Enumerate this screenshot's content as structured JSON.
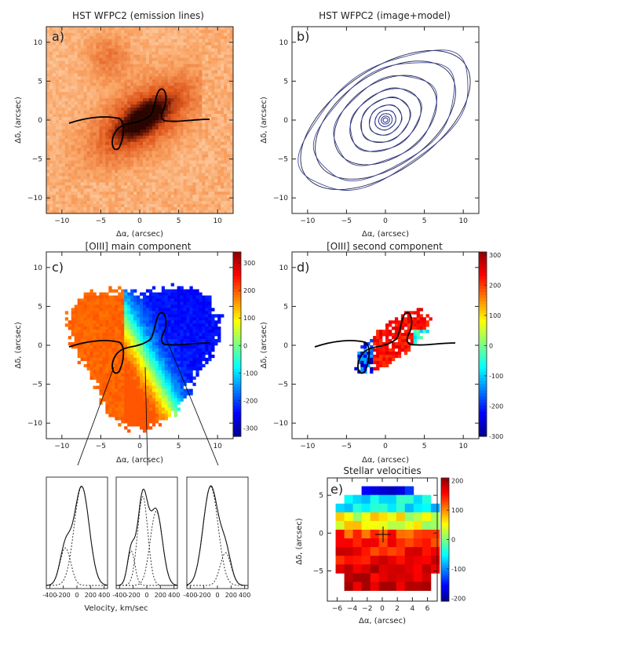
{
  "chart_data": [
    {
      "id": "a",
      "type": "heatmap",
      "title": "HST WFPC2 (emission lines)",
      "panel_label": "a)",
      "xlabel": "Δα, (arcsec)",
      "ylabel": "Δδ, (arcsec)",
      "xlim": [
        -12,
        12
      ],
      "ylim": [
        -12,
        12
      ],
      "xticks": [
        -10,
        -5,
        0,
        5,
        10
      ],
      "yticks": [
        -10,
        -5,
        0,
        5,
        10
      ],
      "colormap": [
        "#ffe8cf",
        "#f9a160",
        "#e0571c",
        "#6e1606",
        "#2a0500"
      ]
    },
    {
      "id": "b",
      "type": "contour",
      "title": "HST WFPC2 (image+model)",
      "panel_label": "b)",
      "xlabel": "Δα, (arcsec)",
      "ylabel": "Δδ, (arcsec)",
      "xlim": [
        -12,
        12
      ],
      "ylim": [
        -12,
        12
      ],
      "xticks": [
        -10,
        -5,
        0,
        5,
        10
      ],
      "yticks": [
        -10,
        -5,
        0,
        5,
        10
      ],
      "position_angle_deg": 35,
      "contours": [
        {
          "a": 12.5,
          "b": 6.5
        },
        {
          "a": 10.2,
          "b": 5.9
        },
        {
          "a": 7.3,
          "b": 4.8
        },
        {
          "a": 5.0,
          "b": 3.5
        },
        {
          "a": 3.4,
          "b": 2.6
        },
        {
          "a": 2.2,
          "b": 1.8
        },
        {
          "a": 1.4,
          "b": 1.2
        },
        {
          "a": 0.9,
          "b": 0.8
        },
        {
          "a": 0.55,
          "b": 0.5
        },
        {
          "a": 0.3,
          "b": 0.28
        }
      ]
    },
    {
      "id": "c",
      "type": "heatmap",
      "title": "[OIII] main component",
      "panel_label": "c)",
      "xlabel": "Δα, (arcsec)",
      "ylabel": "Δδ, (arcsec)",
      "xlim": [
        -12,
        12
      ],
      "ylim": [
        -12,
        12
      ],
      "xticks": [
        -10,
        -5,
        0,
        5,
        10
      ],
      "yticks": [
        -10,
        -5,
        0,
        5,
        10
      ],
      "colorbar": {
        "min": -330,
        "max": 340,
        "ticks": [
          300,
          200,
          100,
          0,
          -100,
          -200,
          -300
        ]
      }
    },
    {
      "id": "d",
      "type": "heatmap",
      "title": "[OIII] second component",
      "panel_label": "d)",
      "xlabel": "Δα, (arcsec)",
      "ylabel": "Δδ, (arcsec)",
      "xlim": [
        -12,
        12
      ],
      "ylim": [
        -12,
        12
      ],
      "xticks": [
        -10,
        -5,
        0,
        5,
        10
      ],
      "yticks": [
        -10,
        -5,
        0,
        5,
        10
      ],
      "colorbar": {
        "min": -300,
        "max": 310,
        "ticks": [
          300,
          200,
          100,
          0,
          -100,
          -200,
          -300
        ]
      }
    },
    {
      "id": "spectra",
      "type": "line",
      "xlabel": "Velocity, km/sec",
      "xlim": [
        -450,
        450
      ],
      "xticks": [
        -400,
        -200,
        0,
        200,
        400
      ],
      "xtick_labels": [
        "-400",
        "-200",
        "0",
        "200",
        "400"
      ],
      "panels": [
        {
          "components": [
            {
              "mu": 70,
              "sigma": 110,
              "amp": 1.0
            },
            {
              "mu": -170,
              "sigma": 80,
              "amp": 0.38
            }
          ]
        },
        {
          "components": [
            {
              "mu": -60,
              "sigma": 75,
              "amp": 0.9
            },
            {
              "mu": 140,
              "sigma": 90,
              "amp": 0.75
            },
            {
              "mu": -230,
              "sigma": 55,
              "amp": 0.35
            }
          ]
        },
        {
          "components": [
            {
              "mu": -100,
              "sigma": 110,
              "amp": 1.0
            },
            {
              "mu": 120,
              "sigma": 80,
              "amp": 0.33
            }
          ]
        }
      ]
    },
    {
      "id": "e",
      "type": "heatmap",
      "title": "Stellar velocities",
      "panel_label": "e)",
      "xlabel": "Δα, (arcsec)",
      "ylabel": "Δδ, (arcsec)",
      "xlim": [
        -7.3,
        7.3
      ],
      "ylim": [
        -9,
        7.3
      ],
      "xticks": [
        -6,
        -4,
        -2,
        0,
        2,
        4,
        6
      ],
      "yticks": [
        -5,
        0,
        5
      ],
      "colorbar": {
        "min": -210,
        "max": 210,
        "ticks": [
          200,
          100,
          0,
          -100,
          -200
        ]
      }
    }
  ]
}
